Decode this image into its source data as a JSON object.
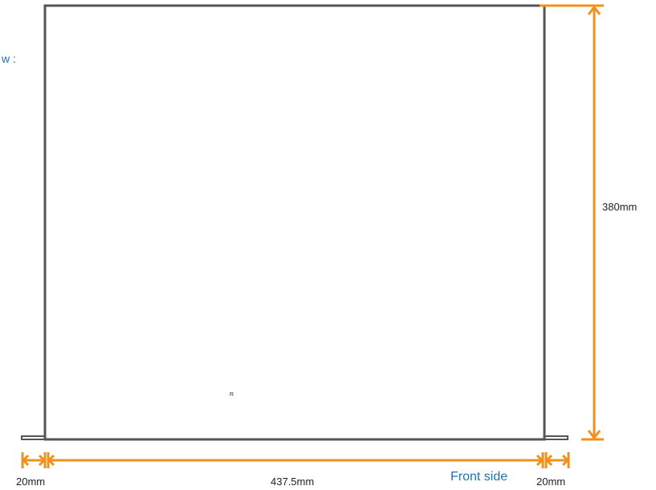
{
  "view_label": "w :",
  "marker_label": "R",
  "front_side_label": "Front side",
  "dimensions": {
    "height": "380mm",
    "width": "437.5mm",
    "left_ear": "20mm",
    "right_ear": "20mm"
  },
  "colors": {
    "outline": "#555555",
    "dimension_line": "#f0901e",
    "label_blue": "#1f6fb4",
    "text": "#222222"
  }
}
